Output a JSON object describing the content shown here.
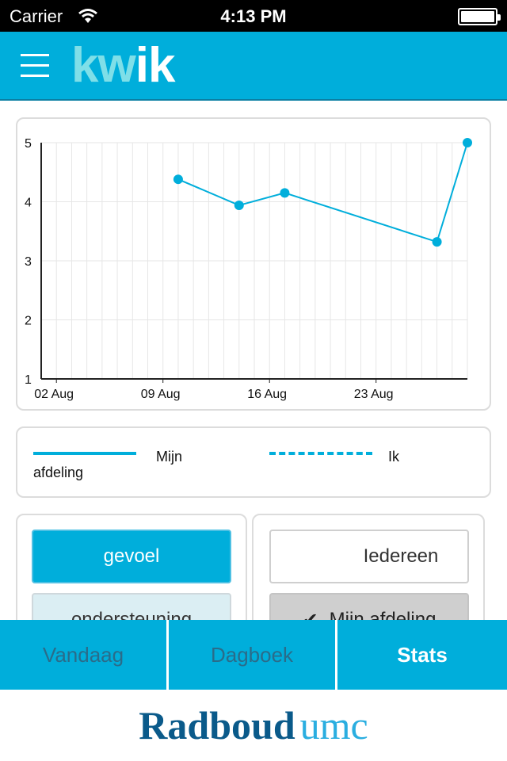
{
  "status_bar": {
    "carrier": "Carrier",
    "time": "4:13 PM"
  },
  "app": {
    "logo_part1": "kw",
    "logo_part2": "ik",
    "menu_icon": "hamburger-menu-icon"
  },
  "chart_data": {
    "type": "line",
    "x_type": "date",
    "x_ticks": [
      "02 Aug",
      "09 Aug",
      "16 Aug",
      "23 Aug"
    ],
    "y_ticks": [
      "1",
      "2",
      "3",
      "4",
      "5"
    ],
    "ylim": [
      1,
      5
    ],
    "xlim": [
      "2014-08-01",
      "2014-08-29"
    ],
    "grid": true,
    "series": [
      {
        "name": "Mijn afdeling",
        "style": "solid",
        "color": "#00aedb",
        "points": [
          {
            "x": "2014-08-10",
            "y": 4.38
          },
          {
            "x": "2014-08-14",
            "y": 3.94
          },
          {
            "x": "2014-08-17",
            "y": 4.15
          },
          {
            "x": "2014-08-27",
            "y": 3.32
          },
          {
            "x": "2014-08-29",
            "y": 5.0
          }
        ]
      }
    ]
  },
  "legend": {
    "items": [
      {
        "label_line1": "Mijn",
        "label_line2": "afdeling",
        "style": "solid"
      },
      {
        "label": "Ik",
        "style": "dashed"
      }
    ]
  },
  "filters": {
    "left": [
      {
        "label": "gevoel",
        "selected": true
      },
      {
        "label": "ondersteuning",
        "selected": false
      }
    ],
    "right": [
      {
        "label": "Iedereen",
        "selected": false
      },
      {
        "label": "Mijn afdeling",
        "selected": true,
        "icon": "checkmark-icon"
      }
    ]
  },
  "tabs": [
    {
      "label": "Vandaag",
      "active": false
    },
    {
      "label": "Dagboek",
      "active": false
    },
    {
      "label": "Stats",
      "active": true
    }
  ],
  "footer": {
    "brand_part1": "Radboud",
    "brand_part2": "umc"
  },
  "colors": {
    "accent": "#00aedb",
    "tab_inactive": "#2a6c8a",
    "brand_dark": "#0a5a8a",
    "brand_light": "#2aaee0"
  }
}
